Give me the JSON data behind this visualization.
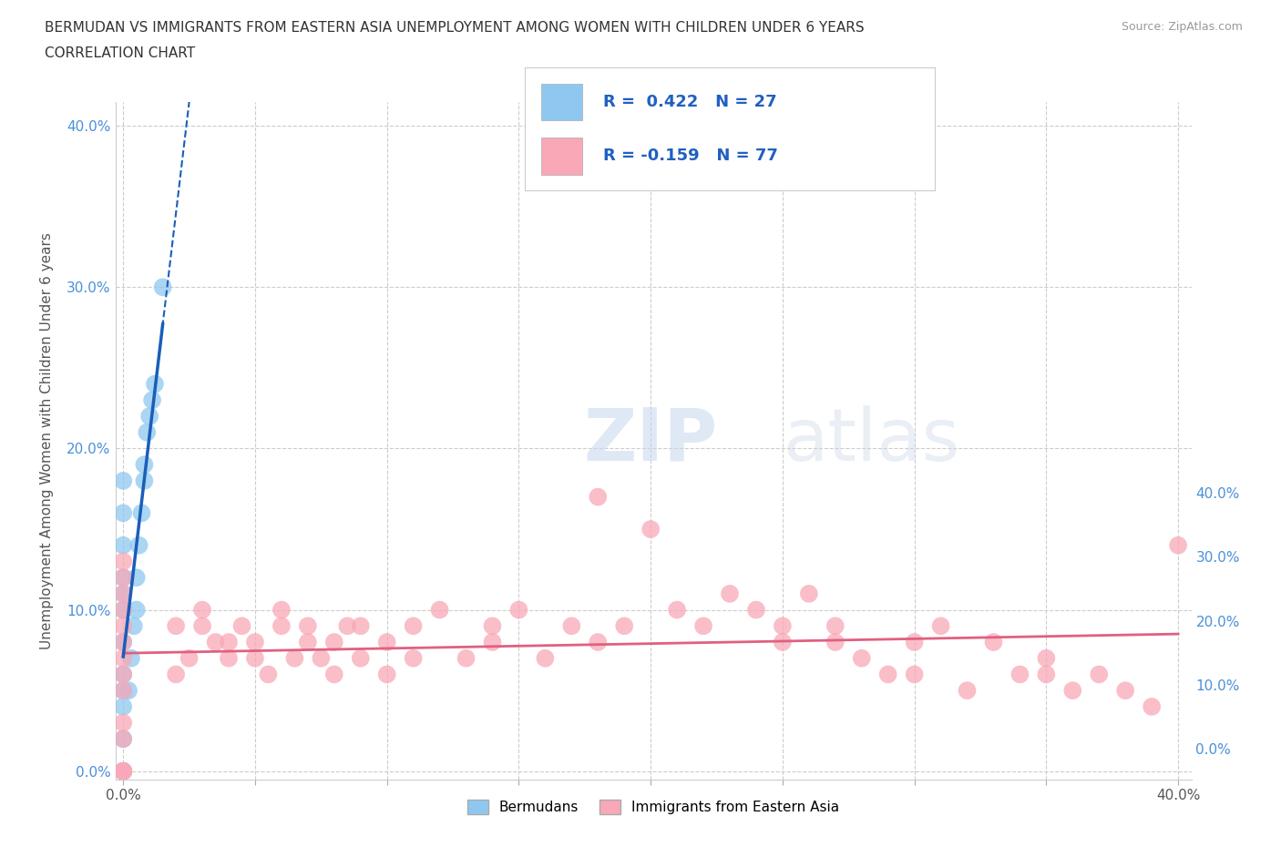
{
  "title_line1": "BERMUDAN VS IMMIGRANTS FROM EASTERN ASIA UNEMPLOYMENT AMONG WOMEN WITH CHILDREN UNDER 6 YEARS",
  "title_line2": "CORRELATION CHART",
  "source": "Source: ZipAtlas.com",
  "ylabel": "Unemployment Among Women with Children Under 6 years",
  "xlim": [
    0.0,
    0.4
  ],
  "ylim": [
    0.0,
    0.4
  ],
  "yticks": [
    0.0,
    0.1,
    0.2,
    0.3,
    0.4
  ],
  "xticks": [
    0.0,
    0.05,
    0.1,
    0.15,
    0.2,
    0.25,
    0.3,
    0.35,
    0.4
  ],
  "grid_color": "#cccccc",
  "background_color": "#ffffff",
  "watermark_zip": "ZIP",
  "watermark_atlas": "atlas",
  "legend_r1": "R =  0.422   N = 27",
  "legend_r2": "R = -0.159   N = 77",
  "blue_color": "#8ec8f0",
  "pink_color": "#f9a8b8",
  "blue_line_color": "#1a5eb8",
  "pink_line_color": "#e06080",
  "bermudans_x": [
    0.0,
    0.0,
    0.0,
    0.0,
    0.0,
    0.0,
    0.0,
    0.0,
    0.0,
    0.0,
    0.0,
    0.0,
    0.0,
    0.002,
    0.003,
    0.004,
    0.005,
    0.005,
    0.006,
    0.007,
    0.008,
    0.008,
    0.009,
    0.01,
    0.011,
    0.012,
    0.015
  ],
  "bermudans_y": [
    0.0,
    0.0,
    0.02,
    0.04,
    0.05,
    0.06,
    0.08,
    0.1,
    0.11,
    0.12,
    0.14,
    0.16,
    0.18,
    0.05,
    0.07,
    0.09,
    0.1,
    0.12,
    0.14,
    0.16,
    0.18,
    0.19,
    0.21,
    0.22,
    0.23,
    0.24,
    0.3
  ],
  "eastern_asia_x": [
    0.0,
    0.0,
    0.0,
    0.0,
    0.0,
    0.0,
    0.0,
    0.0,
    0.0,
    0.0,
    0.0,
    0.0,
    0.0,
    0.0,
    0.0,
    0.02,
    0.02,
    0.025,
    0.03,
    0.03,
    0.035,
    0.04,
    0.04,
    0.045,
    0.05,
    0.05,
    0.055,
    0.06,
    0.06,
    0.065,
    0.07,
    0.07,
    0.075,
    0.08,
    0.08,
    0.085,
    0.09,
    0.09,
    0.1,
    0.1,
    0.11,
    0.11,
    0.12,
    0.13,
    0.14,
    0.14,
    0.15,
    0.16,
    0.17,
    0.18,
    0.18,
    0.19,
    0.2,
    0.21,
    0.22,
    0.23,
    0.24,
    0.25,
    0.25,
    0.26,
    0.27,
    0.27,
    0.28,
    0.29,
    0.3,
    0.3,
    0.31,
    0.32,
    0.33,
    0.34,
    0.35,
    0.35,
    0.36,
    0.37,
    0.38,
    0.39,
    0.4
  ],
  "eastern_asia_y": [
    0.0,
    0.0,
    0.0,
    0.0,
    0.02,
    0.03,
    0.05,
    0.06,
    0.07,
    0.08,
    0.09,
    0.1,
    0.11,
    0.12,
    0.13,
    0.09,
    0.06,
    0.07,
    0.09,
    0.1,
    0.08,
    0.07,
    0.08,
    0.09,
    0.07,
    0.08,
    0.06,
    0.09,
    0.1,
    0.07,
    0.08,
    0.09,
    0.07,
    0.06,
    0.08,
    0.09,
    0.07,
    0.09,
    0.06,
    0.08,
    0.07,
    0.09,
    0.1,
    0.07,
    0.08,
    0.09,
    0.1,
    0.07,
    0.09,
    0.17,
    0.08,
    0.09,
    0.15,
    0.1,
    0.09,
    0.11,
    0.1,
    0.08,
    0.09,
    0.11,
    0.08,
    0.09,
    0.07,
    0.06,
    0.08,
    0.06,
    0.09,
    0.05,
    0.08,
    0.06,
    0.07,
    0.06,
    0.05,
    0.06,
    0.05,
    0.04,
    0.14
  ]
}
